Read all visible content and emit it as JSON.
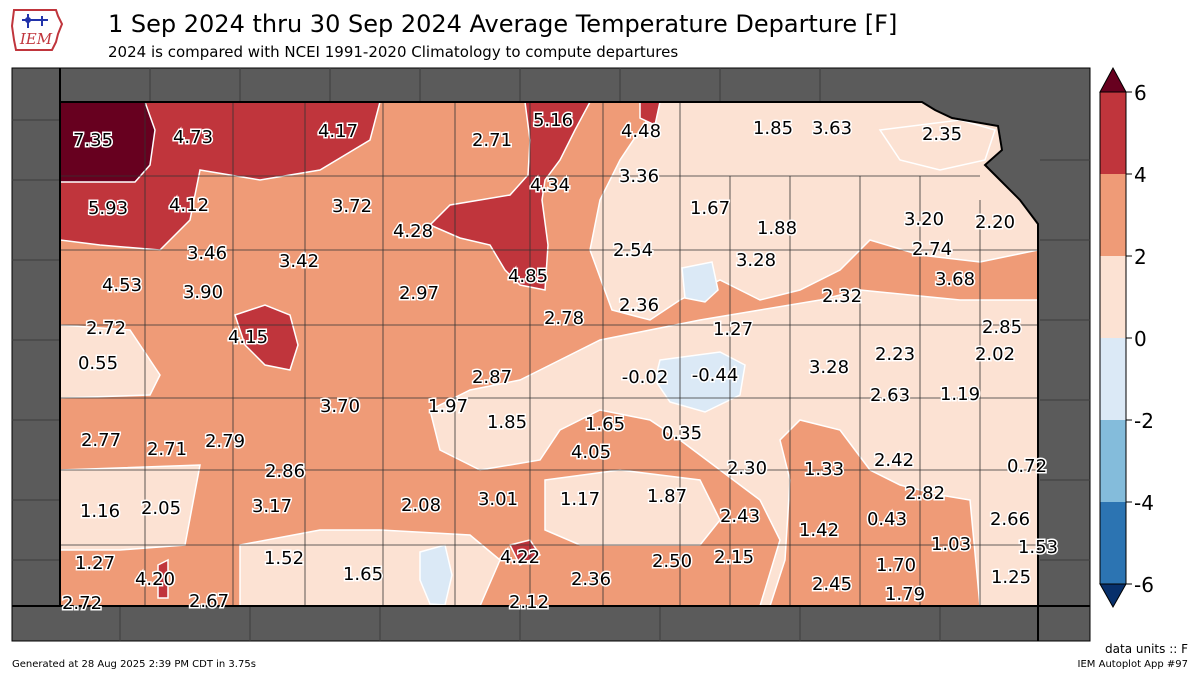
{
  "header": {
    "logo_text": "IEM",
    "title": "1 Sep 2024 thru 30 Sep 2024 Average Temperature Departure [F]",
    "subtitle": "2024 is compared with NCEI 1991-2020 Climatology to compute departures"
  },
  "colors": {
    "background_outside": "#5b5b5b",
    "bins": [
      "#08306b",
      "#2c74b2",
      "#84bcdb",
      "#dbe9f6",
      "#fce2d3",
      "#ef9b77",
      "#c0353c",
      "#67001f"
    ]
  },
  "colorbar": {
    "ticks": [
      "6",
      "4",
      "2",
      "0",
      "-2",
      "-4",
      "-6"
    ],
    "range": [
      -6,
      6
    ],
    "bounds": [
      -6,
      -4,
      -2,
      0,
      2,
      4,
      6
    ]
  },
  "map_values": [
    {
      "label": "7.35",
      "value": 7.35
    },
    {
      "label": "4.73",
      "value": 4.73
    },
    {
      "label": "4.17",
      "value": 4.17
    },
    {
      "label": "2.71",
      "value": 2.71
    },
    {
      "label": "5.16",
      "value": 5.16
    },
    {
      "label": "4.48",
      "value": 4.48
    },
    {
      "label": "1.85",
      "value": 1.85
    },
    {
      "label": "3.63",
      "value": 3.63
    },
    {
      "label": "2.35",
      "value": 2.35
    },
    {
      "label": "5.93",
      "value": 5.93
    },
    {
      "label": "4.12",
      "value": 4.12
    },
    {
      "label": "3.72",
      "value": 3.72
    },
    {
      "label": "4.34",
      "value": 4.34
    },
    {
      "label": "3.36",
      "value": 3.36
    },
    {
      "label": "1.67",
      "value": 1.67
    },
    {
      "label": "4.28",
      "value": 4.28
    },
    {
      "label": "1.88",
      "value": 1.88
    },
    {
      "label": "3.20",
      "value": 3.2
    },
    {
      "label": "2.20",
      "value": 2.2
    },
    {
      "label": "3.46",
      "value": 3.46
    },
    {
      "label": "3.42",
      "value": 3.42
    },
    {
      "label": "2.54",
      "value": 2.54
    },
    {
      "label": "3.28",
      "value": 3.28
    },
    {
      "label": "2.74",
      "value": 2.74
    },
    {
      "label": "4.85",
      "value": 4.85
    },
    {
      "label": "3.68",
      "value": 3.68
    },
    {
      "label": "4.53",
      "value": 4.53
    },
    {
      "label": "3.90",
      "value": 3.9
    },
    {
      "label": "2.97",
      "value": 2.97
    },
    {
      "label": "2.32",
      "value": 2.32
    },
    {
      "label": "2.36",
      "value": 2.36
    },
    {
      "label": "2.78",
      "value": 2.78
    },
    {
      "label": "2.72",
      "value": 2.72
    },
    {
      "label": "4.15",
      "value": 4.15
    },
    {
      "label": "1.27",
      "value": 1.27
    },
    {
      "label": "2.85",
      "value": 2.85
    },
    {
      "label": "2.23",
      "value": 2.23
    },
    {
      "label": "2.02",
      "value": 2.02
    },
    {
      "label": "0.55",
      "value": 0.55
    },
    {
      "label": "-0.02",
      "value": -0.02
    },
    {
      "label": "-0.44",
      "value": -0.44
    },
    {
      "label": "3.28",
      "value": 3.28
    },
    {
      "label": "2.87",
      "value": 2.87
    },
    {
      "label": "2.63",
      "value": 2.63
    },
    {
      "label": "1.19",
      "value": 1.19
    },
    {
      "label": "3.70",
      "value": 3.7
    },
    {
      "label": "1.97",
      "value": 1.97
    },
    {
      "label": "1.85",
      "value": 1.85
    },
    {
      "label": "1.65",
      "value": 1.65
    },
    {
      "label": "0.35",
      "value": 0.35
    },
    {
      "label": "2.77",
      "value": 2.77
    },
    {
      "label": "2.71",
      "value": 2.71
    },
    {
      "label": "2.79",
      "value": 2.79
    },
    {
      "label": "4.05",
      "value": 4.05
    },
    {
      "label": "2.42",
      "value": 2.42
    },
    {
      "label": "2.86",
      "value": 2.86
    },
    {
      "label": "2.30",
      "value": 2.3
    },
    {
      "label": "1.33",
      "value": 1.33
    },
    {
      "label": "0.72",
      "value": 0.72
    },
    {
      "label": "2.82",
      "value": 2.82
    },
    {
      "label": "1.16",
      "value": 1.16
    },
    {
      "label": "2.05",
      "value": 2.05
    },
    {
      "label": "3.17",
      "value": 3.17
    },
    {
      "label": "2.08",
      "value": 2.08
    },
    {
      "label": "3.01",
      "value": 3.01
    },
    {
      "label": "1.17",
      "value": 1.17
    },
    {
      "label": "1.87",
      "value": 1.87
    },
    {
      "label": "2.43",
      "value": 2.43
    },
    {
      "label": "0.43",
      "value": 0.43
    },
    {
      "label": "2.66",
      "value": 2.66
    },
    {
      "label": "1.42",
      "value": 1.42
    },
    {
      "label": "1.03",
      "value": 1.03
    },
    {
      "label": "1.53",
      "value": 1.53
    },
    {
      "label": "1.27",
      "value": 1.27
    },
    {
      "label": "1.52",
      "value": 1.52
    },
    {
      "label": "4.22",
      "value": 4.22
    },
    {
      "label": "2.50",
      "value": 2.5
    },
    {
      "label": "2.15",
      "value": 2.15
    },
    {
      "label": "1.70",
      "value": 1.7
    },
    {
      "label": "4.20",
      "value": 4.2
    },
    {
      "label": "1.65",
      "value": 1.65
    },
    {
      "label": "2.36",
      "value": 2.36
    },
    {
      "label": "1.25",
      "value": 1.25
    },
    {
      "label": "2.45",
      "value": 2.45
    },
    {
      "label": "1.79",
      "value": 1.79
    },
    {
      "label": "2.72",
      "value": 2.72
    },
    {
      "label": "2.67",
      "value": 2.67
    },
    {
      "label": "2.12",
      "value": 2.12
    }
  ],
  "footer": {
    "units": "data units :: F",
    "generated": "Generated at 28 Aug 2025 2:39 PM CDT in 3.75s",
    "app": "IEM Autoplot App #97"
  }
}
